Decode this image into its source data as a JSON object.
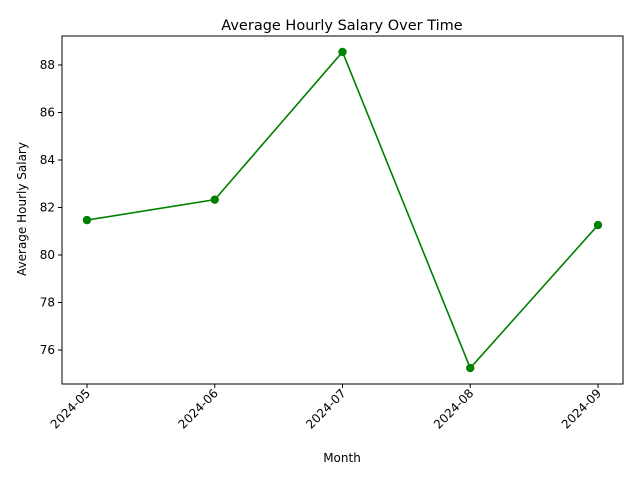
{
  "chart_data": {
    "type": "line",
    "title": "Average Hourly Salary Over Time",
    "xlabel": "Month",
    "ylabel": "Average Hourly Salary",
    "x": [
      "2024-05",
      "2024-06",
      "2024-07",
      "2024-08",
      "2024-09"
    ],
    "series": [
      {
        "values": [
          81.47,
          82.33,
          88.55,
          75.24,
          81.26
        ],
        "color": "#008000",
        "marker": "circle"
      }
    ],
    "yticks": [
      76,
      78,
      80,
      82,
      84,
      86,
      88
    ],
    "ylim": [
      74.57,
      89.22
    ],
    "grid": false,
    "x_tick_rotation_deg": 45
  }
}
